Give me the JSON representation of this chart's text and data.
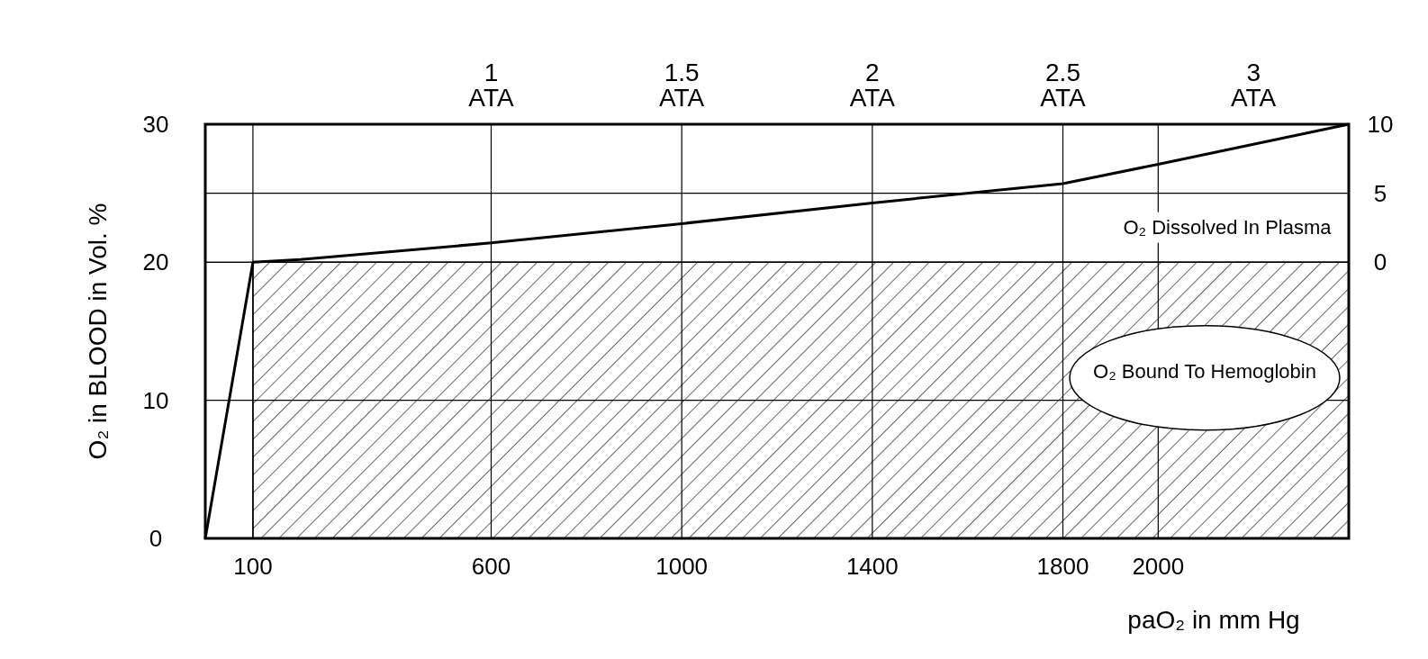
{
  "chart_data": {
    "type": "line",
    "xlabel": "paO₂ in mm Hg",
    "ylabel": "O₂ in BLOOD in Vol. %",
    "xlim": [
      0,
      2400
    ],
    "xticks": [
      100,
      600,
      1000,
      1400,
      1800,
      2000
    ],
    "ylim": [
      0,
      30
    ],
    "yticks": [
      0,
      10,
      20,
      30
    ],
    "y2lim": [
      -20,
      10
    ],
    "y2ticks": [
      0,
      5,
      10
    ],
    "x2lim": [
      0.25,
      3.25
    ],
    "x2ticks": [
      {
        "value": 1,
        "label": "1 ATA"
      },
      {
        "value": 1.5,
        "label": "1.5 ATA"
      },
      {
        "value": 2,
        "label": "2 ATA"
      },
      {
        "value": 2.5,
        "label": "2.5 ATA"
      },
      {
        "value": 3,
        "label": "3 ATA"
      }
    ],
    "grid": true,
    "annotations": [
      "O₂ Dissolved In Plasma"
    ],
    "series": [
      {
        "type": "area",
        "name": "O₂ Bound To Hemoglobin",
        "color": "#000000",
        "x": [
          100,
          2400
        ],
        "values": [
          20,
          20
        ]
      },
      {
        "color": "#000000",
        "x": [
          0,
          100,
          200,
          600,
          1000,
          1400,
          1800,
          2000,
          2400
        ],
        "values": [
          0,
          20,
          20.2,
          21.4,
          22.8,
          24.3,
          25.7,
          27.1,
          30
        ]
      }
    ]
  }
}
